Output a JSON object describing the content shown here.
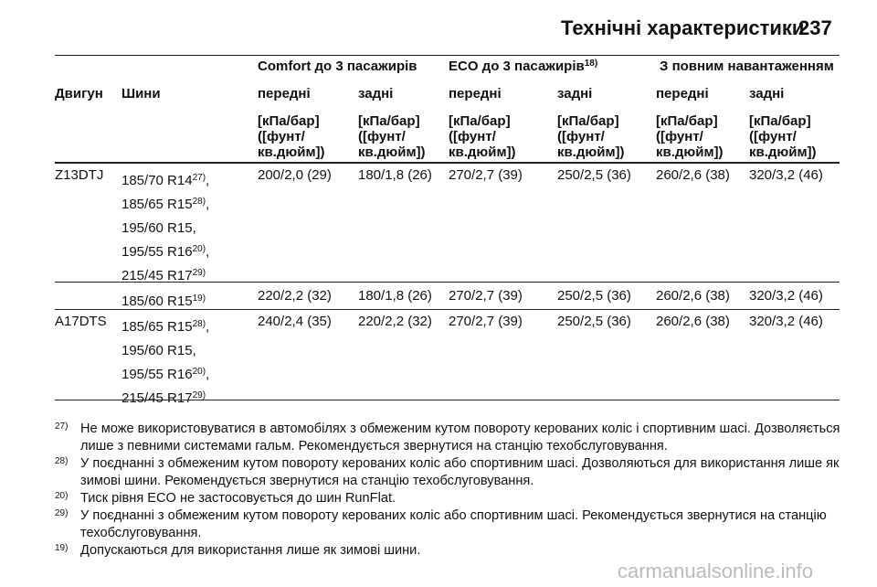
{
  "header": {
    "title": "Технічні характеристики",
    "page": "237"
  },
  "table": {
    "group_headers": [
      {
        "text": "Comfort до 3 пасажирів"
      },
      {
        "text": "ECO до 3 пасажирів",
        "note": "18)"
      },
      {
        "text": "З повним навантаженням"
      }
    ],
    "columns": [
      "Двигун",
      "Шини",
      "передні",
      "задні",
      "передні",
      "задні",
      "передні",
      "задні"
    ],
    "units": [
      [
        "[кПа/бар]",
        "([фунт/",
        "кв.дюйм])"
      ],
      [
        "[кПа/бар]",
        "([фунт/",
        "кв.дюйм])"
      ],
      [
        "[кПа/бар]",
        "([фунт/",
        "кв.дюйм])"
      ],
      [
        "[кПа/бар]",
        "([фунт/",
        "кв.дюйм])"
      ],
      [
        "[кПа/бар]",
        "([фунт/",
        "кв.дюйм])"
      ],
      [
        "[кПа/бар]",
        "([фунт/",
        "кв.дюйм])"
      ]
    ],
    "rows": [
      {
        "engine": "Z13DTJ",
        "tyres": [
          {
            "text": "185/70 R14",
            "note": "27)",
            "sep": ","
          },
          {
            "text": "185/65 R15",
            "note": "28)",
            "sep": ","
          },
          {
            "text": "195/60 R15,"
          },
          {
            "text": "195/55 R16",
            "note": "20)",
            "sep": ","
          },
          {
            "text": "215/45 R17",
            "note": "29)"
          }
        ],
        "values": [
          "200/2,0 (29)",
          "180/1,8 (26)",
          "270/2,7 (39)",
          "250/2,5 (36)",
          "260/2,6 (38)",
          "320/3,2 (46)"
        ]
      },
      {
        "tyres": [
          {
            "text": "185/60 R15",
            "note": "19)"
          }
        ],
        "values": [
          "220/2,2 (32)",
          "180/1,8 (26)",
          "270/2,7 (39)",
          "250/2,5 (36)",
          "260/2,6 (38)",
          "320/3,2 (46)"
        ]
      },
      {
        "engine": "A17DTS",
        "tyres": [
          {
            "text": "185/65 R15",
            "note": "28)",
            "sep": ","
          },
          {
            "text": "195/60 R15,"
          },
          {
            "text": "195/55 R16",
            "note": "20)",
            "sep": ","
          },
          {
            "text": "215/45 R17",
            "note": "29)"
          }
        ],
        "values": [
          "240/2,4 (35)",
          "220/2,2 (32)",
          "270/2,7 (39)",
          "250/2,5 (36)",
          "260/2,6 (38)",
          "320/3,2 (46)"
        ]
      }
    ]
  },
  "footnotes": [
    {
      "mark": "27)",
      "text": "Не може використовуватися в автомобілях з обмеженим кутом повороту керованих коліс і спортивним шасі. Дозволяється лише з певними системами гальм. Рекомендується звернутися на станцію техобслуговування."
    },
    {
      "mark": "28)",
      "text": "У поєднанні з обмеженим кутом повороту керованих коліс або спортивним шасі. Дозволяються для використання лише як зимові шини. Рекомендується звернутися на станцію техобслуговування."
    },
    {
      "mark": "20)",
      "text": "Тиск рівня ECO не застосовується до шин RunFlat."
    },
    {
      "mark": "29)",
      "text": "У поєднанні з обмеженим кутом повороту керованих коліс або спортивним шасі. Рекомендується звернутися на станцію техобслуговування."
    },
    {
      "mark": "19)",
      "text": "Допускаються для використання лише як зимові шини."
    }
  ],
  "watermark": "carmanualsonline.info"
}
